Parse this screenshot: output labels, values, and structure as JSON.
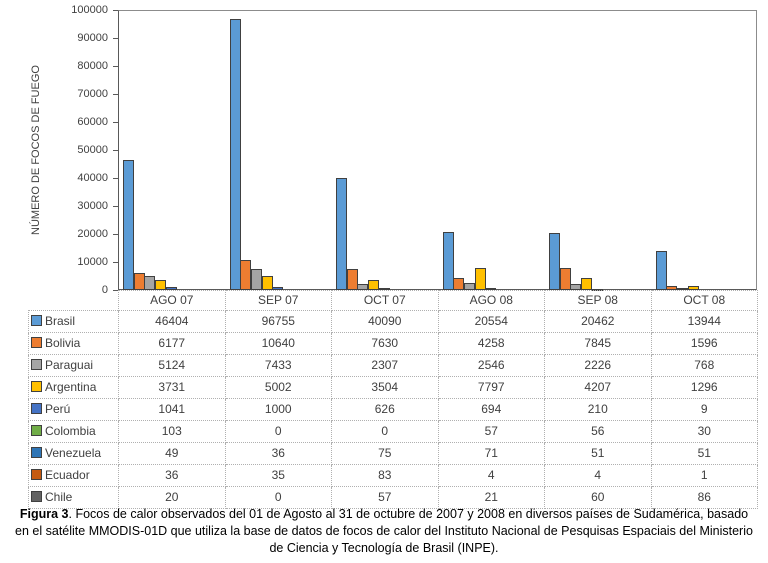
{
  "chart_data": {
    "type": "bar",
    "title": "",
    "xlabel": "",
    "ylabel": "NÚMERO DE FOCOS DE FUEGO",
    "ylim": [
      0,
      100000
    ],
    "ytick_step": 10000,
    "grid": false,
    "legend_position": "table-left-column",
    "categories": [
      "AGO 07",
      "SEP 07",
      "OCT 07",
      "AGO 08",
      "SEP 08",
      "OCT 08"
    ],
    "series": [
      {
        "name": "Brasil",
        "color": "#5B9BD5",
        "values": [
          46404,
          96755,
          40090,
          20554,
          20462,
          13944
        ]
      },
      {
        "name": "Bolivia",
        "color": "#ED7D31",
        "values": [
          6177,
          10640,
          7630,
          4258,
          7845,
          1596
        ]
      },
      {
        "name": "Paraguai",
        "color": "#A5A5A5",
        "values": [
          5124,
          7433,
          2307,
          2546,
          2226,
          768
        ]
      },
      {
        "name": "Argentina",
        "color": "#FFC000",
        "values": [
          3731,
          5002,
          3504,
          7797,
          4207,
          1296
        ]
      },
      {
        "name": "Perú",
        "color": "#4472C4",
        "values": [
          1041,
          1000,
          626,
          694,
          210,
          9
        ]
      },
      {
        "name": "Colombia",
        "color": "#70AD47",
        "values": [
          103,
          0,
          0,
          57,
          56,
          30
        ]
      },
      {
        "name": "Venezuela",
        "color": "#2E75B6",
        "values": [
          49,
          36,
          75,
          71,
          51,
          51
        ]
      },
      {
        "name": "Ecuador",
        "color": "#C55A11",
        "values": [
          36,
          35,
          83,
          4,
          4,
          1
        ]
      },
      {
        "name": "Chile",
        "color": "#636363",
        "values": [
          20,
          0,
          57,
          21,
          60,
          86
        ]
      }
    ]
  },
  "caption": {
    "label": "Figura 3",
    "text": ". Focos de calor observados del 01 de Agosto al 31 de octubre de 2007 y 2008 en diversos países de Sudamérica, basado en el satélite MMODIS-01D que utiliza la base de datos de focos de calor del Instituto Nacional de Pesquisas Espaciais del Ministerio de Ciencia y Tecnología de Brasil (INPE)."
  }
}
